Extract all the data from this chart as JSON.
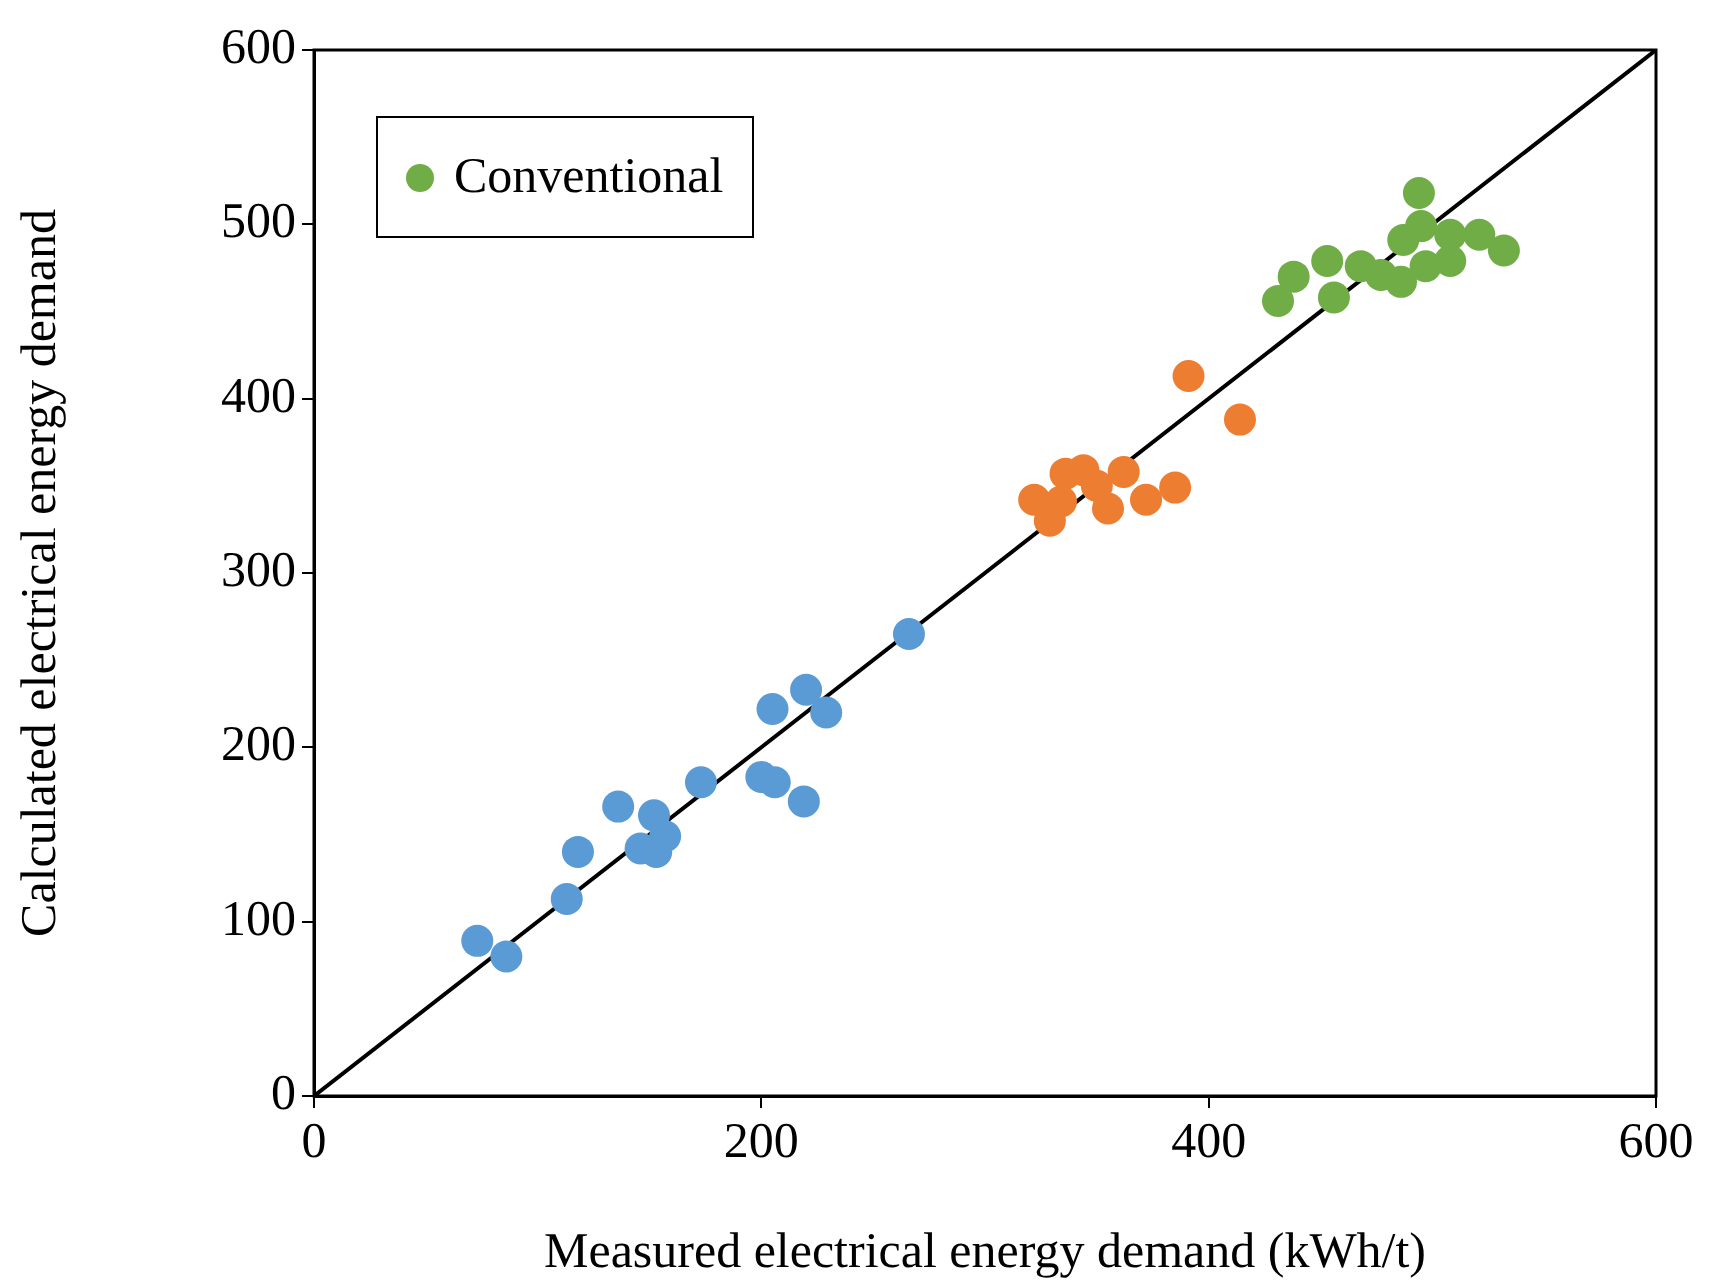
{
  "chart_data": {
    "type": "scatter",
    "xlabel": "Measured electrical energy demand (kWh/t)",
    "ylabel": "Calculated electrical energy demand",
    "xlim": [
      0,
      600
    ],
    "ylim": [
      0,
      600
    ],
    "xticks": [
      0,
      200,
      400,
      600
    ],
    "yticks": [
      0,
      100,
      200,
      300,
      400,
      500,
      600
    ],
    "grid": false,
    "legend": "top left",
    "marker": "circle",
    "series": [
      {
        "color": "#5b9bd5",
        "x": [
          73,
          86,
          113,
          118,
          136,
          152,
          146,
          153,
          157,
          173,
          205,
          220,
          229,
          200,
          206,
          219,
          266
        ],
        "values": [
          89,
          80,
          113,
          140,
          166,
          161,
          142,
          140,
          149,
          180,
          222,
          233,
          220,
          183,
          180,
          169,
          265
        ]
      },
      {
        "color": "#ed7d31",
        "x": [
          391,
          414,
          322,
          329,
          336,
          344,
          350,
          355,
          362,
          372,
          385,
          334
        ],
        "values": [
          413,
          388,
          342,
          330,
          357,
          359,
          350,
          337,
          358,
          342,
          349,
          341
        ]
      },
      {
        "name": "Conventional",
        "color": "#70ad47",
        "x": [
          494,
          431,
          438,
          453,
          456,
          468,
          477,
          487,
          486,
          497,
          508,
          508,
          521,
          532,
          495
        ],
        "values": [
          518,
          456,
          470,
          479,
          458,
          476,
          471,
          491,
          467,
          476,
          494,
          479,
          494,
          485,
          499
        ]
      },
      {
        "type": "line",
        "color": "#000000",
        "x": [
          0,
          600
        ],
        "values": [
          0,
          600
        ],
        "marker": "none"
      }
    ]
  }
}
